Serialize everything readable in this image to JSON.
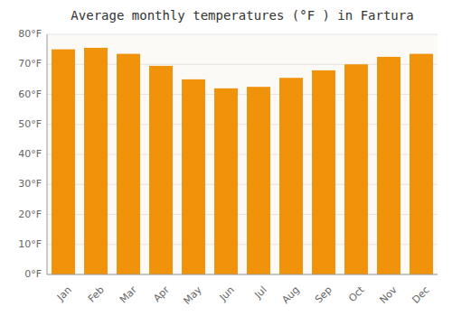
{
  "chart_data": {
    "type": "bar",
    "title": "Average monthly temperatures (°F ) in Fartura",
    "categories": [
      "Jan",
      "Feb",
      "Mar",
      "Apr",
      "May",
      "Jun",
      "Jul",
      "Aug",
      "Sep",
      "Oct",
      "Nov",
      "Dec"
    ],
    "values": [
      75,
      75.5,
      73.5,
      69.5,
      65,
      62,
      62.5,
      65.5,
      68,
      70,
      72.5,
      73.5
    ],
    "color": "#F0920A",
    "ylim": [
      0,
      80
    ],
    "yticks": [
      {
        "value": 0,
        "label": "0°F"
      },
      {
        "value": 10,
        "label": "10°F"
      },
      {
        "value": 20,
        "label": "20°F"
      },
      {
        "value": 30,
        "label": "30°F"
      },
      {
        "value": 40,
        "label": "40°F"
      },
      {
        "value": 50,
        "label": "50°F"
      },
      {
        "value": 60,
        "label": "60°F"
      },
      {
        "value": 70,
        "label": "70°F"
      },
      {
        "value": 80,
        "label": "80°F"
      }
    ],
    "grid": true
  }
}
